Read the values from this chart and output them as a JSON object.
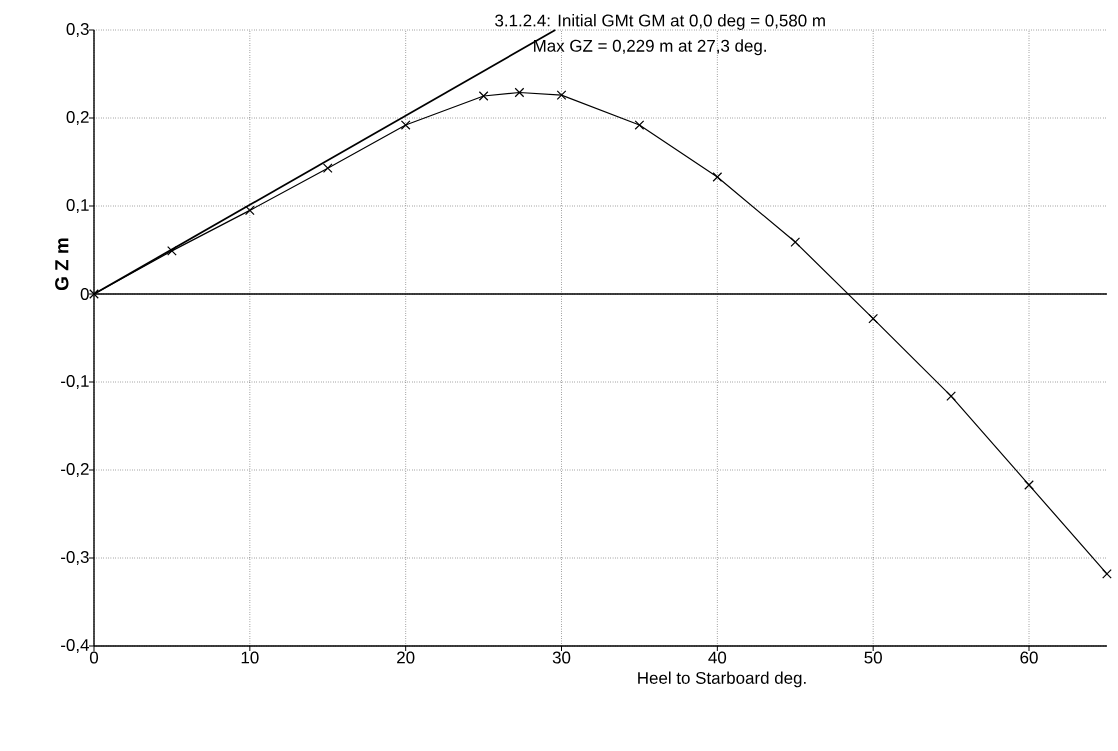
{
  "chart_data": {
    "type": "line",
    "xlabel": "Heel to Starboard   deg.",
    "ylabel": "G Z   m",
    "annotations": [
      "3.1.2.4: Initial GMt GM at 0,0 deg = 0,580 m",
      "Max GZ = 0,229 m at 27,3 deg."
    ],
    "series": [
      {
        "color": "#000000",
        "x": [
          0,
          5,
          10,
          15,
          20,
          25,
          27.3,
          30,
          35,
          40,
          45,
          50,
          55,
          60,
          65
        ],
        "values": [
          0,
          0.049,
          0.095,
          0.143,
          0.192,
          0.225,
          0.229,
          0.226,
          0.192,
          0.133,
          0.059,
          -0.028,
          -0.116,
          -0.217,
          -0.318
        ],
        "marker": "cross"
      },
      {
        "color": "#000000",
        "x": [
          0,
          29.6
        ],
        "values": [
          0,
          0.3
        ],
        "marker": "none"
      }
    ],
    "xlim": [
      0,
      65
    ],
    "ylim": [
      -0.4,
      0.3
    ],
    "xticks": [
      0,
      10,
      20,
      30,
      40,
      50,
      60
    ],
    "yticks": [
      {
        "value": 0.3,
        "label": "0,3"
      },
      {
        "value": 0.2,
        "label": "0,2"
      },
      {
        "value": 0.1,
        "label": "0,1"
      },
      0,
      {
        "value": -0.1,
        "label": "-0,1"
      },
      {
        "value": -0.2,
        "label": "-0,2"
      },
      {
        "value": -0.3,
        "label": "-0,3"
      },
      {
        "value": -0.4,
        "label": "-0,4"
      }
    ],
    "ref_lines": [
      {
        "axis": "y",
        "value": 0
      }
    ],
    "grid": true,
    "line_style": "solid"
  }
}
